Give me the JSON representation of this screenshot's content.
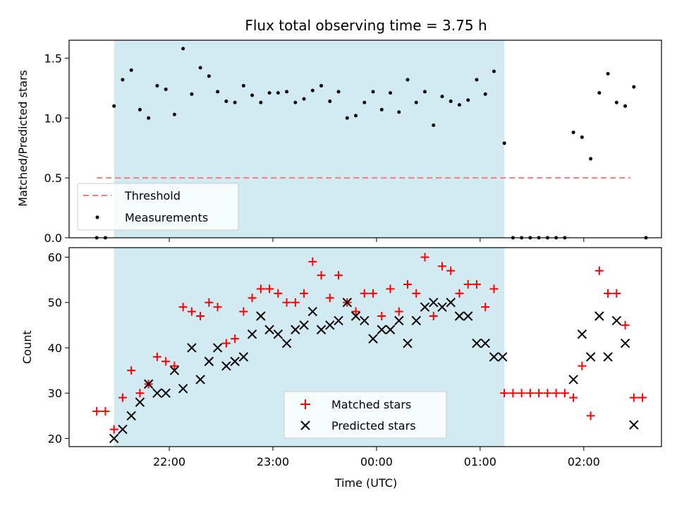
{
  "chart_data": {
    "title": "Flux total observing time = 3.75 h",
    "xlabel": "Time (UTC)",
    "x_unit": "minutes relative to 00:00 UTC",
    "xlim": [
      -178,
      165
    ],
    "xticks": [
      {
        "value": -120,
        "label": "22:00"
      },
      {
        "value": -60,
        "label": "23:00"
      },
      {
        "value": 0,
        "label": "00:00"
      },
      {
        "value": 60,
        "label": "01:00"
      },
      {
        "value": 120,
        "label": "02:00"
      }
    ],
    "highlight_span": [
      -152,
      74
    ],
    "highlight_color": "#add8e6",
    "panels": [
      {
        "name": "ratio",
        "type": "scatter",
        "ylabel": "Matched/Predicted stars",
        "ylim": [
          0,
          1.65
        ],
        "yticks": [
          0.0,
          0.5,
          1.0,
          1.5
        ],
        "ytick_labels": [
          "0.0",
          "0.5",
          "1.0",
          "1.5"
        ],
        "threshold": {
          "name": "Threshold",
          "value": 0.5,
          "x_range": [
            -162,
            147
          ],
          "color": "#f08080"
        },
        "series": [
          {
            "name": "Measurements",
            "color": "#000000",
            "marker": "dot",
            "points": [
              [
                -162,
                0.0
              ],
              [
                -157,
                0.0
              ],
              [
                -152,
                1.1
              ],
              [
                -147,
                1.32
              ],
              [
                -142,
                1.4
              ],
              [
                -137,
                1.07
              ],
              [
                -132,
                1.0
              ],
              [
                -127,
                1.27
              ],
              [
                -122,
                1.24
              ],
              [
                -117,
                1.03
              ],
              [
                -112,
                1.58
              ],
              [
                -107,
                1.2
              ],
              [
                -102,
                1.42
              ],
              [
                -97,
                1.35
              ],
              [
                -92,
                1.22
              ],
              [
                -87,
                1.14
              ],
              [
                -82,
                1.13
              ],
              [
                -77,
                1.27
              ],
              [
                -72,
                1.19
              ],
              [
                -67,
                1.13
              ],
              [
                -62,
                1.21
              ],
              [
                -57,
                1.21
              ],
              [
                -52,
                1.22
              ],
              [
                -47,
                1.13
              ],
              [
                -42,
                1.16
              ],
              [
                -37,
                1.23
              ],
              [
                -32,
                1.27
              ],
              [
                -27,
                1.14
              ],
              [
                -22,
                1.22
              ],
              [
                -17,
                1.0
              ],
              [
                -12,
                1.02
              ],
              [
                -7,
                1.13
              ],
              [
                -2,
                1.22
              ],
              [
                3,
                1.07
              ],
              [
                8,
                1.21
              ],
              [
                13,
                1.05
              ],
              [
                18,
                1.32
              ],
              [
                23,
                1.13
              ],
              [
                28,
                1.22
              ],
              [
                33,
                0.94
              ],
              [
                38,
                1.18
              ],
              [
                43,
                1.14
              ],
              [
                48,
                1.11
              ],
              [
                53,
                1.15
              ],
              [
                58,
                1.32
              ],
              [
                63,
                1.2
              ],
              [
                68,
                1.39
              ],
              [
                74,
                0.79
              ],
              [
                79,
                0.0
              ],
              [
                84,
                0.0
              ],
              [
                89,
                0.0
              ],
              [
                94,
                0.0
              ],
              [
                99,
                0.0
              ],
              [
                104,
                0.0
              ],
              [
                109,
                0.0
              ],
              [
                114,
                0.88
              ],
              [
                119,
                0.84
              ],
              [
                124,
                0.66
              ],
              [
                129,
                1.21
              ],
              [
                134,
                1.37
              ],
              [
                139,
                1.13
              ],
              [
                144,
                1.1
              ],
              [
                149,
                1.26
              ],
              [
                156,
                0.0
              ]
            ]
          }
        ],
        "legend": {
          "position": "lower left",
          "entries": [
            "Threshold",
            "Measurements"
          ]
        }
      },
      {
        "name": "counts",
        "type": "scatter",
        "ylabel": "Count",
        "ylim": [
          18.2,
          62.1
        ],
        "yticks": [
          20,
          30,
          40,
          50,
          60
        ],
        "ytick_labels": [
          "20",
          "30",
          "40",
          "50",
          "60"
        ],
        "series": [
          {
            "name": "Matched stars",
            "color": "#ff0000",
            "marker": "plus",
            "points": [
              [
                -162,
                26
              ],
              [
                -157,
                26
              ],
              [
                -152,
                22
              ],
              [
                -147,
                29
              ],
              [
                -142,
                35
              ],
              [
                -137,
                30
              ],
              [
                -132,
                32
              ],
              [
                -127,
                38
              ],
              [
                -122,
                37
              ],
              [
                -117,
                36
              ],
              [
                -112,
                49
              ],
              [
                -107,
                48
              ],
              [
                -102,
                47
              ],
              [
                -97,
                50
              ],
              [
                -92,
                49
              ],
              [
                -87,
                41
              ],
              [
                -82,
                42
              ],
              [
                -77,
                48
              ],
              [
                -72,
                51
              ],
              [
                -67,
                53
              ],
              [
                -62,
                53
              ],
              [
                -57,
                52
              ],
              [
                -52,
                50
              ],
              [
                -47,
                50
              ],
              [
                -42,
                52
              ],
              [
                -37,
                59
              ],
              [
                -32,
                56
              ],
              [
                -27,
                51
              ],
              [
                -22,
                56
              ],
              [
                -17,
                50
              ],
              [
                -12,
                48
              ],
              [
                -7,
                52
              ],
              [
                -2,
                52
              ],
              [
                3,
                47
              ],
              [
                8,
                53
              ],
              [
                13,
                48
              ],
              [
                18,
                54
              ],
              [
                23,
                52
              ],
              [
                28,
                60
              ],
              [
                33,
                47
              ],
              [
                38,
                58
              ],
              [
                43,
                57
              ],
              [
                48,
                52
              ],
              [
                53,
                54
              ],
              [
                58,
                54
              ],
              [
                63,
                49
              ],
              [
                68,
                53
              ],
              [
                74,
                30
              ],
              [
                79,
                30
              ],
              [
                84,
                30
              ],
              [
                89,
                30
              ],
              [
                94,
                30
              ],
              [
                99,
                30
              ],
              [
                104,
                30
              ],
              [
                109,
                30
              ],
              [
                114,
                29
              ],
              [
                119,
                36
              ],
              [
                124,
                25
              ],
              [
                129,
                57
              ],
              [
                134,
                52
              ],
              [
                139,
                52
              ],
              [
                144,
                45
              ],
              [
                149,
                29
              ],
              [
                154,
                29
              ]
            ]
          },
          {
            "name": "Predicted stars",
            "color": "#000000",
            "marker": "cross",
            "points": [
              [
                -152,
                20
              ],
              [
                -147,
                22
              ],
              [
                -142,
                25
              ],
              [
                -137,
                28
              ],
              [
                -132,
                32
              ],
              [
                -127,
                30
              ],
              [
                -122,
                30
              ],
              [
                -117,
                35
              ],
              [
                -112,
                31
              ],
              [
                -107,
                40
              ],
              [
                -102,
                33
              ],
              [
                -97,
                37
              ],
              [
                -92,
                40
              ],
              [
                -87,
                36
              ],
              [
                -82,
                37
              ],
              [
                -77,
                38
              ],
              [
                -72,
                43
              ],
              [
                -67,
                47
              ],
              [
                -62,
                44
              ],
              [
                -57,
                43
              ],
              [
                -52,
                41
              ],
              [
                -47,
                44
              ],
              [
                -42,
                45
              ],
              [
                -37,
                48
              ],
              [
                -32,
                44
              ],
              [
                -27,
                45
              ],
              [
                -22,
                46
              ],
              [
                -17,
                50
              ],
              [
                -12,
                47
              ],
              [
                -7,
                46
              ],
              [
                -2,
                42
              ],
              [
                3,
                44
              ],
              [
                8,
                44
              ],
              [
                13,
                46
              ],
              [
                18,
                41
              ],
              [
                23,
                46
              ],
              [
                28,
                49
              ],
              [
                33,
                50
              ],
              [
                38,
                49
              ],
              [
                43,
                50
              ],
              [
                48,
                47
              ],
              [
                53,
                47
              ],
              [
                58,
                41
              ],
              [
                63,
                41
              ],
              [
                68,
                38
              ],
              [
                73,
                38
              ],
              [
                114,
                33
              ],
              [
                119,
                43
              ],
              [
                124,
                38
              ],
              [
                129,
                47
              ],
              [
                134,
                38
              ],
              [
                139,
                46
              ],
              [
                144,
                41
              ],
              [
                149,
                23
              ]
            ]
          }
        ],
        "legend": {
          "position": "lower center",
          "entries": [
            "Matched stars",
            "Predicted stars"
          ]
        }
      }
    ]
  }
}
